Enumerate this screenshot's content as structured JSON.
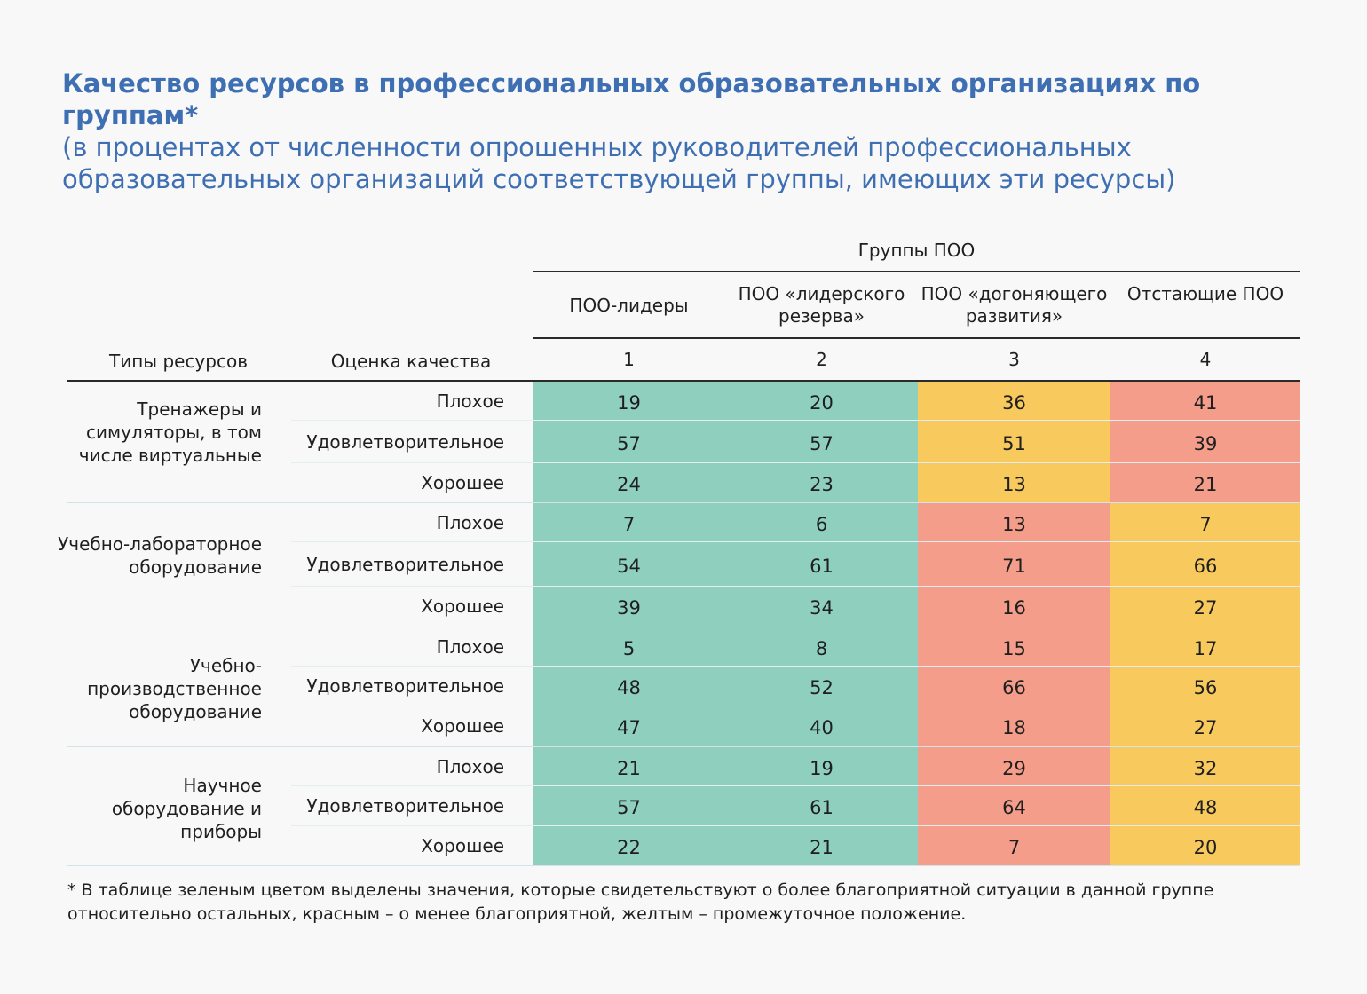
{
  "title": "Качество ресурсов в профессиональных образовательных организациях по группам*",
  "subtitle": "(в процентах от численности опрошенных руководителей профессиональных образовательных организаций соответствующей группы, имеющих эти ресурсы)",
  "headers": {
    "groups": "Группы ПОО",
    "types": "Типы ресурсов",
    "quality": "Оценка качества",
    "columns": [
      {
        "name": "ПОО-лидеры",
        "num": "1"
      },
      {
        "name": "ПОО «лидерского резерва»",
        "num": "2"
      },
      {
        "name": "ПОО «догоняющего развития»",
        "num": "3"
      },
      {
        "name": "Отстающие ПОО",
        "num": "4"
      }
    ]
  },
  "colors": {
    "green": "#8ecfbe",
    "yellow": "#f8c95d",
    "red": "#f49d8a"
  },
  "chart_data": {
    "type": "table",
    "categories": [
      "ПОО-лидеры",
      "ПОО «лидерского резерва»",
      "ПОО «догоняющего развития»",
      "Отстающие ПОО"
    ],
    "groups": [
      {
        "type": "Тренажеры и симуляторы, в том числе виртуальные",
        "rows": [
          {
            "quality": "Плохое",
            "values": [
              19,
              20,
              36,
              41
            ]
          },
          {
            "quality": "Удовлетворительное",
            "values": [
              57,
              57,
              51,
              39
            ]
          },
          {
            "quality": "Хорошее",
            "values": [
              24,
              23,
              13,
              21
            ]
          }
        ],
        "colors": [
          "green",
          "green",
          "yellow",
          "red"
        ]
      },
      {
        "type": "Учебно-лабораторное оборудование",
        "rows": [
          {
            "quality": "Плохое",
            "values": [
              7,
              6,
              13,
              7
            ]
          },
          {
            "quality": "Удовлетворительное",
            "values": [
              54,
              61,
              71,
              66
            ]
          },
          {
            "quality": "Хорошее",
            "values": [
              39,
              34,
              16,
              27
            ]
          }
        ],
        "colors": [
          "green",
          "green",
          "red",
          "yellow"
        ]
      },
      {
        "type": "Учебно-производственное оборудование",
        "rows": [
          {
            "quality": "Плохое",
            "values": [
              5,
              8,
              15,
              17
            ]
          },
          {
            "quality": "Удовлетворительное",
            "values": [
              48,
              52,
              66,
              56
            ]
          },
          {
            "quality": "Хорошее",
            "values": [
              47,
              40,
              18,
              27
            ]
          }
        ],
        "colors": [
          "green",
          "green",
          "red",
          "yellow"
        ]
      },
      {
        "type": "Научное оборудование и приборы",
        "rows": [
          {
            "quality": "Плохое",
            "values": [
              21,
              19,
              29,
              32
            ]
          },
          {
            "quality": "Удовлетворительное",
            "values": [
              57,
              61,
              64,
              48
            ]
          },
          {
            "quality": "Хорошее",
            "values": [
              22,
              21,
              7,
              20
            ]
          }
        ],
        "colors": [
          "green",
          "green",
          "red",
          "yellow"
        ]
      }
    ]
  },
  "footnote": "* В таблице зеленым цветом выделены значения, которые свидетельствуют о более благоприятной ситуации в данной группе относительно остальных, красным – о менее благоприятной, желтым – промежуточное положение."
}
